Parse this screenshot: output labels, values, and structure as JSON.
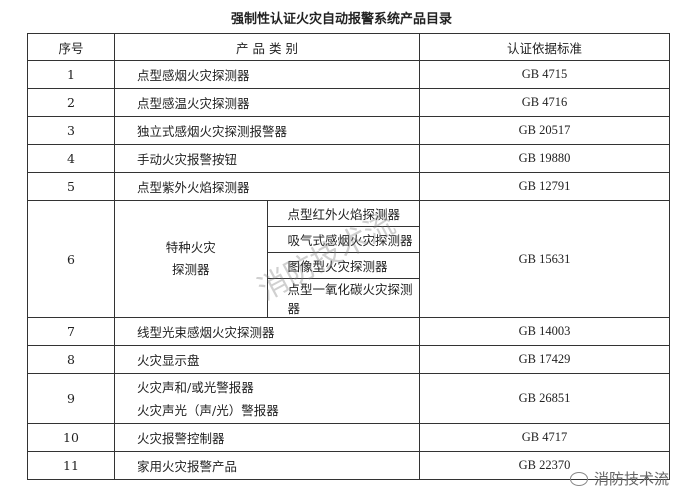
{
  "title": "强制性认证火灾自动报警系统产品目录",
  "headers": [
    "序号",
    "产 品 类 别",
    "认证依据标准"
  ],
  "rows": [
    {
      "no": "1",
      "name": "点型感烟火灾探测器",
      "std": "GB 4715"
    },
    {
      "no": "2",
      "name": "点型感温火灾探测器",
      "std": "GB 4716"
    },
    {
      "no": "3",
      "name": "独立式感烟火灾探测报警器",
      "std": "GB 20517"
    },
    {
      "no": "4",
      "name": "手动火灾报警按钮",
      "std": "GB 19880"
    },
    {
      "no": "5",
      "name": "点型紫外火焰探测器",
      "std": "GB 12791"
    }
  ],
  "row6": {
    "no": "6",
    "group_line1": "特种火灾",
    "group_line2": "探测器",
    "items": [
      "点型红外火焰探测器",
      "吸气式感烟火灾探测器",
      "图像型火灾探测器",
      "点型一氧化碳火灾探测器"
    ],
    "std": "GB 15631"
  },
  "row7": {
    "no": "7",
    "name": "线型光束感烟火灾探测器",
    "std": "GB 14003"
  },
  "row8": {
    "no": "8",
    "name": "火灾显示盘",
    "std": "GB 17429"
  },
  "row9": {
    "no": "9",
    "name_line1": "火灾声和/或光警报器",
    "name_line2": "火灾声光（声/光）警报器",
    "std": "GB 26851"
  },
  "row10": {
    "no": "10",
    "name": "火灾报警控制器",
    "std": "GB 4717"
  },
  "row11": {
    "no": "11",
    "name": "家用火灾报警产品",
    "std": "GB 22370"
  },
  "watermark": "消防技术流",
  "footer": {
    "icon": "wechat-icon",
    "label": "消防技术流"
  }
}
